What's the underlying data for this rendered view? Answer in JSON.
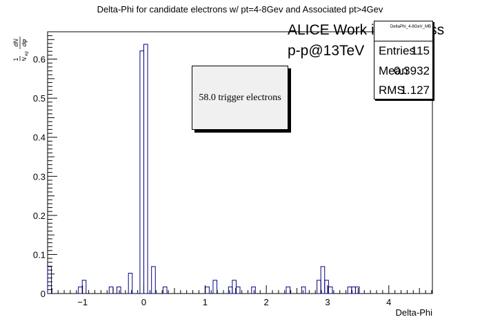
{
  "chart_data": {
    "type": "bar",
    "title": "Delta-Phi for candidate electrons w/ pt=4-8Gev and Associated pt>4Gev",
    "xlabel": "Delta-Phi",
    "ylabel": "1/N_eg dN/dφ",
    "xlim": [
      -1.571,
      4.712
    ],
    "ylim": [
      0,
      0.67
    ],
    "x_ticks": [
      "−1",
      "0",
      "1",
      "2",
      "3",
      "4"
    ],
    "y_ticks": [
      "0",
      "0.1",
      "0.2",
      "0.3",
      "0.4",
      "0.5",
      "0.6"
    ],
    "grid": false,
    "bin_width": 0.0628,
    "bins": [
      {
        "x": -1.5394,
        "y": 0.069
      },
      {
        "x": -1.0368,
        "y": 0.017
      },
      {
        "x": -0.974,
        "y": 0.034
      },
      {
        "x": -0.5341,
        "y": 0.017
      },
      {
        "x": -0.4084,
        "y": 0.017
      },
      {
        "x": -0.2199,
        "y": 0.052
      },
      {
        "x": -0.0314,
        "y": 0.621
      },
      {
        "x": 0.0314,
        "y": 0.638
      },
      {
        "x": 0.1571,
        "y": 0.069
      },
      {
        "x": 0.3456,
        "y": 0.017
      },
      {
        "x": 1.0367,
        "y": 0.017
      },
      {
        "x": 1.1624,
        "y": 0.034
      },
      {
        "x": 1.4137,
        "y": 0.017
      },
      {
        "x": 1.4765,
        "y": 0.034
      },
      {
        "x": 1.5393,
        "y": 0.017
      },
      {
        "x": 1.7906,
        "y": 0.017
      },
      {
        "x": 2.3561,
        "y": 0.017
      },
      {
        "x": 2.6074,
        "y": 0.017
      },
      {
        "x": 2.8587,
        "y": 0.034
      },
      {
        "x": 2.9215,
        "y": 0.069
      },
      {
        "x": 2.9843,
        "y": 0.034
      },
      {
        "x": 3.0472,
        "y": 0.017
      },
      {
        "x": 3.3613,
        "y": 0.017
      },
      {
        "x": 3.4241,
        "y": 0.017
      },
      {
        "x": 3.4869,
        "y": 0.017
      }
    ],
    "line_color": "#000080"
  },
  "stats": {
    "name": "DeltaPhi_4-8GeV_MB",
    "entries_label": "Entries",
    "entries": "115",
    "mean_label": "Mean",
    "mean": "0.3932",
    "rms_label": "RMS",
    "rms": "1.127"
  },
  "annotations": {
    "alice": "ALICE Work in Progress",
    "collision": "p-p@13TeV",
    "trigger": "58.0 trigger electrons"
  }
}
